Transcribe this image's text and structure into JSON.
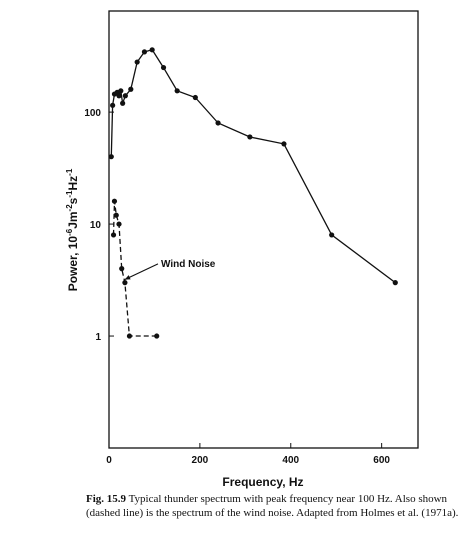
{
  "chart_data": {
    "type": "line",
    "xlabel": "Frequency, Hz",
    "ylabel_parts": {
      "a": "Power, 10",
      "a_sup": "-6",
      "b": "Jm",
      "b_sup": "-2",
      "c": "s",
      "c_sup": "-1",
      "d": "Hz",
      "d_sup": "-1"
    },
    "xlim": [
      0,
      680
    ],
    "ylim": [
      0.1,
      800
    ],
    "y_scale": "log",
    "x_ticks": [
      0,
      200,
      400,
      600
    ],
    "x_tick_labels": [
      "0",
      "200",
      "400",
      "600"
    ],
    "y_ticks": [
      1,
      10,
      100
    ],
    "y_tick_labels": [
      "1",
      "10",
      "100"
    ],
    "grid": false,
    "series": [
      {
        "style": "solid",
        "x": [
          5,
          8,
          12,
          18,
          22,
          26,
          30,
          36,
          48,
          62,
          78,
          95,
          120,
          150,
          190,
          240,
          310,
          385,
          490,
          630
        ],
        "y": [
          40,
          115,
          145,
          150,
          140,
          155,
          120,
          140,
          160,
          280,
          345,
          360,
          250,
          155,
          135,
          80,
          60,
          52,
          8,
          3
        ]
      },
      {
        "style": "dashed",
        "x": [
          10,
          12,
          16,
          22,
          28,
          35,
          45,
          105
        ],
        "y": [
          8,
          16,
          12,
          10,
          4,
          3,
          1,
          1
        ]
      }
    ],
    "annotations": [
      {
        "text": "Wind Noise",
        "x": 110,
        "y": 4.5,
        "arrow_to_x": 30,
        "arrow_to_y": 3.0
      }
    ]
  },
  "caption": {
    "fig_label": "Fig. 15.9",
    "text": "Typical thunder spectrum with peak frequency near 100 Hz. Also shown (dashed line) is the spectrum of the wind noise. Adapted from Holmes et al. (1971a)."
  }
}
